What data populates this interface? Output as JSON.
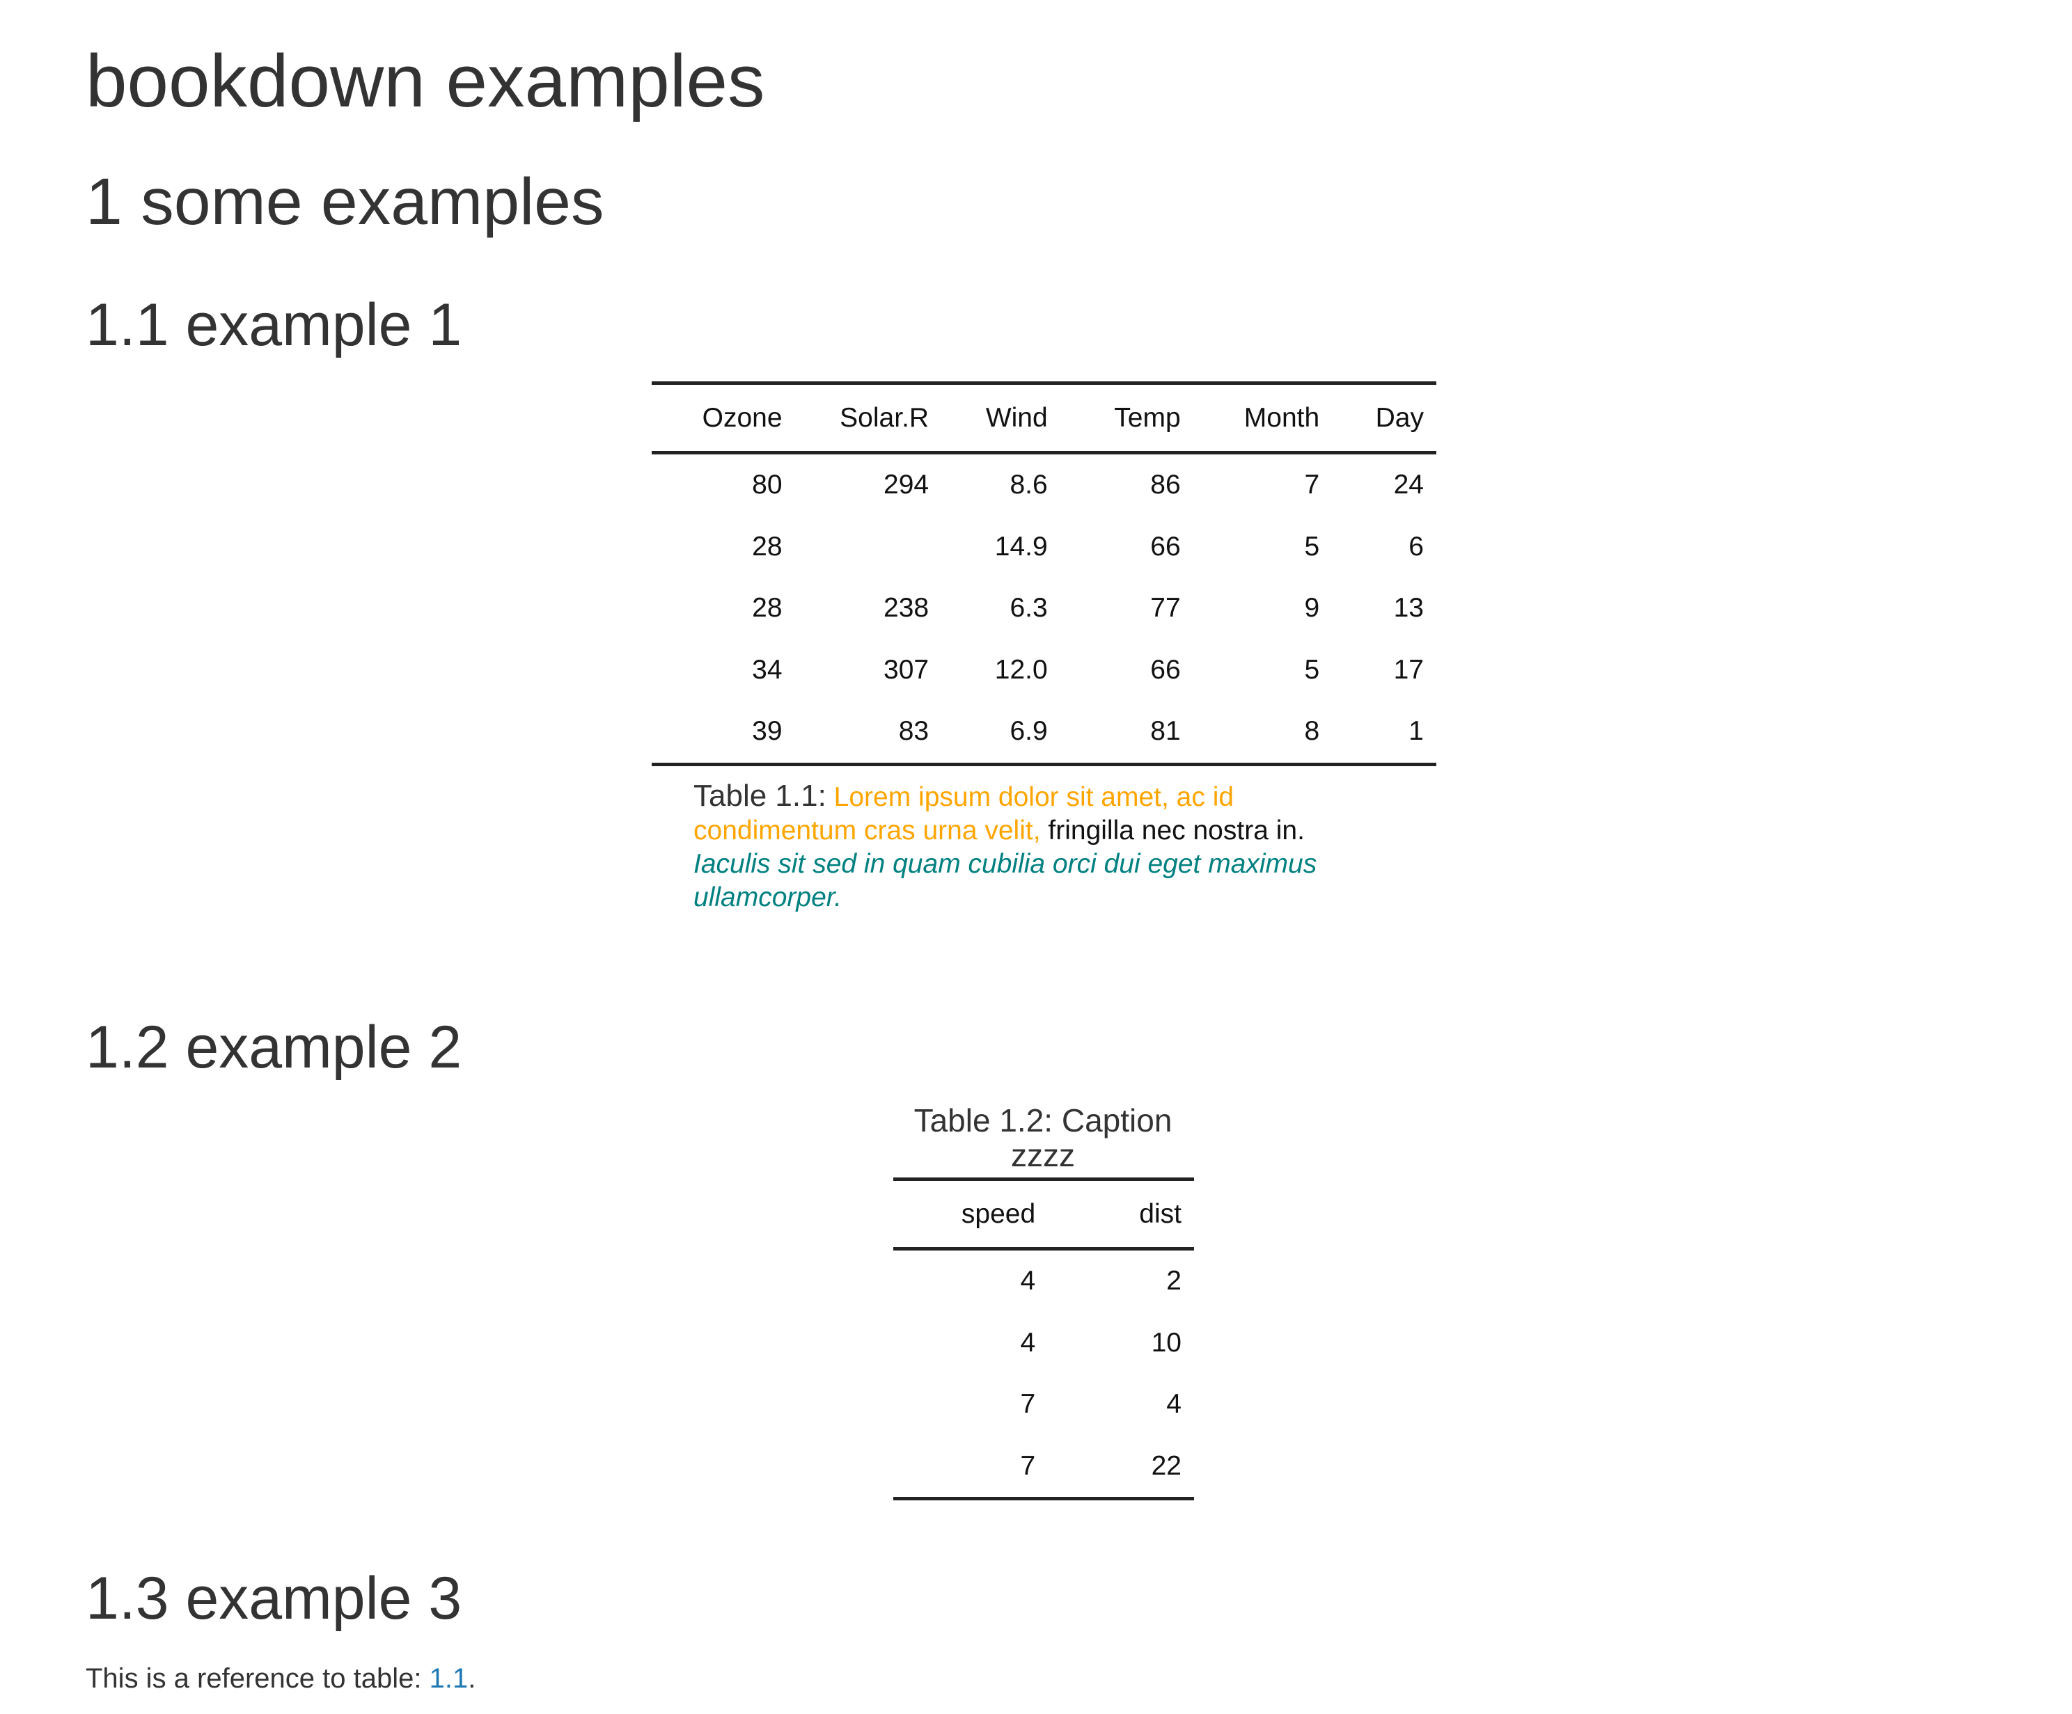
{
  "document": {
    "title": "bookdown examples",
    "chapter": "1 some examples",
    "sections": [
      {
        "heading": "1.1 example 1"
      },
      {
        "heading": "1.2 example 2"
      },
      {
        "heading": "1.3 example 3"
      }
    ]
  },
  "table1": {
    "columns": [
      "Ozone",
      "Solar.R",
      "Wind",
      "Temp",
      "Month",
      "Day"
    ],
    "rows": [
      [
        "80",
        "294",
        "8.6",
        "86",
        "7",
        "24"
      ],
      [
        "28",
        "",
        "14.9",
        "66",
        "5",
        "6"
      ],
      [
        "28",
        "238",
        "6.3",
        "77",
        "9",
        "13"
      ],
      [
        "34",
        "307",
        "12.0",
        "66",
        "5",
        "17"
      ],
      [
        "39",
        "83",
        "6.9",
        "81",
        "8",
        "1"
      ]
    ],
    "caption": {
      "label": "Table 1.1:",
      "orange_text": "Lorem ipsum dolor sit amet, ac id condimentum cras urna velit,",
      "plain_text": "fringilla nec nostra in.",
      "teal_text": "Iaculis sit sed in quam cubilia orci dui eget maximus ullamcorper."
    }
  },
  "table2": {
    "caption_line1": "Table 1.2: Caption",
    "caption_line2": "zzzz",
    "columns": [
      "speed",
      "dist"
    ],
    "rows": [
      [
        "4",
        "2"
      ],
      [
        "4",
        "10"
      ],
      [
        "7",
        "4"
      ],
      [
        "7",
        "22"
      ]
    ]
  },
  "reference": {
    "text": "This is a reference to table: ",
    "link": "1.1",
    "suffix": "."
  },
  "colors": {
    "orange": "#ffa500",
    "teal": "#008080",
    "link": "#1f77b4",
    "text": "#333333"
  }
}
